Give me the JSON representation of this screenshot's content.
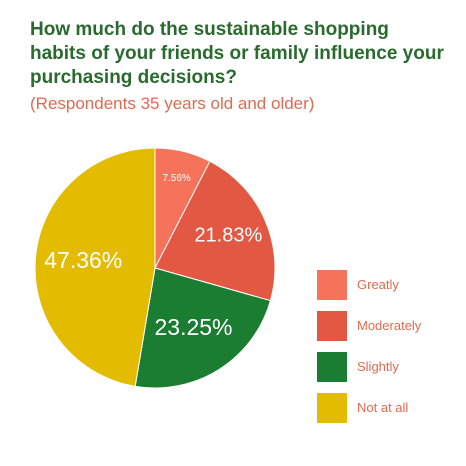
{
  "header": {
    "title": "How much do the sustainable shopping habits of your friends or family influence your purchasing decisions?",
    "subtitle": "(Respondents 35 years old and older)"
  },
  "chart_data": {
    "type": "pie",
    "title": "How much do the sustainable shopping habits of your friends or family influence your purchasing decisions?",
    "subtitle": "(Respondents 35 years old and older)",
    "categories": [
      "Greatly",
      "Moderately",
      "Slightly",
      "Not at all"
    ],
    "values": [
      7.56,
      21.83,
      23.25,
      47.36
    ],
    "labels": [
      "7.56%",
      "21.83%",
      "23.25%",
      "47.36%"
    ],
    "colors": [
      "#f4735a",
      "#e25843",
      "#1a7d32",
      "#e3bb00"
    ],
    "start_angle_deg": 0,
    "direction": "clockwise",
    "legend_position": "right"
  }
}
